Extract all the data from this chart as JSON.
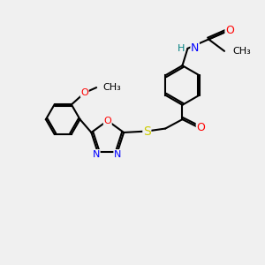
{
  "background_color": "#f0f0f0",
  "bond_color": "#000000",
  "atom_colors": {
    "N": "#0000ff",
    "O": "#ff0000",
    "S": "#cccc00",
    "H": "#008080",
    "C": "#000000"
  },
  "title": "",
  "figsize": [
    3.0,
    3.0
  ],
  "dpi": 100
}
